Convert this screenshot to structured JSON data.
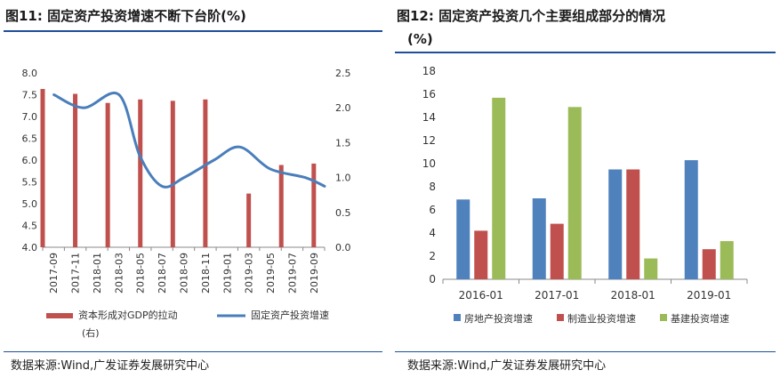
{
  "left": {
    "title_prefix": "图11:",
    "title_text": "固定资产投资增速不断下台阶(%)",
    "source": "数据来源:Wind,广发证券发展研究中心",
    "chart_data": {
      "type": "bar+line",
      "title": "固定资产投资增速不断下台阶(%)",
      "categories": [
        "2017-09",
        "2017-11",
        "2018-01",
        "2018-03",
        "2018-05",
        "2018-07",
        "2018-09",
        "2018-11",
        "2019-01",
        "2019-03",
        "2019-05",
        "2019-07",
        "2019-09"
      ],
      "left_axis": {
        "ylim": [
          4.0,
          8.0
        ],
        "ticks": [
          "4.0",
          "4.5",
          "5.0",
          "5.5",
          "6.0",
          "6.5",
          "7.0",
          "7.5",
          "8.0"
        ]
      },
      "right_axis": {
        "ylim": [
          0.0,
          2.5
        ],
        "ticks": [
          "0.0",
          "0.5",
          "1.0",
          "1.5",
          "2.0",
          "2.5"
        ]
      },
      "bar_categories": [
        "2017-08",
        "2017-11",
        "2018-02",
        "2018-05",
        "2018-08",
        "2018-11",
        "2019-03",
        "2019-06",
        "2019-09"
      ],
      "bar_series": {
        "name": "资本形成对GDP的拉动(右)",
        "axis": "right",
        "color": "#c0504d",
        "values": [
          2.27,
          2.2,
          2.07,
          2.12,
          2.1,
          2.12,
          0.77,
          1.18,
          1.2
        ]
      },
      "line_series": {
        "name": "固定资产投资增速",
        "axis": "left",
        "color": "#4a7ebb",
        "x": [
          2017.67,
          2017.9,
          2018.17,
          2018.33,
          2018.5,
          2018.67,
          2018.9,
          2019.1,
          2019.33,
          2019.6,
          2019.75
        ],
        "values": [
          7.5,
          7.2,
          7.5,
          6.1,
          5.4,
          5.6,
          6.0,
          6.3,
          5.8,
          5.6,
          5.4
        ]
      },
      "legend": [
        "资本形成对GDP的拉动",
        "(右)",
        "固定资产投资增速"
      ]
    }
  },
  "right": {
    "title_prefix": "图12:",
    "title_text": "固定资产投资几个主要组成部分的情况",
    "title_line2": "(%)",
    "source": "数据来源:Wind,广发证券发展研究中心",
    "chart_data": {
      "type": "bar",
      "title": "固定资产投资几个主要组成部分的情况(%)",
      "categories": [
        "2016-01",
        "2017-01",
        "2018-01",
        "2019-01"
      ],
      "ylim": [
        0,
        18
      ],
      "ticks": [
        "0",
        "2",
        "4",
        "6",
        "8",
        "10",
        "12",
        "14",
        "16",
        "18"
      ],
      "series": [
        {
          "name": "房地产投资增速",
          "color": "#4f81bd",
          "values": [
            6.9,
            7.0,
            9.5,
            10.3
          ]
        },
        {
          "name": "制造业投资增速",
          "color": "#c0504d",
          "values": [
            4.2,
            4.8,
            9.5,
            2.6
          ]
        },
        {
          "name": "基建投资增速",
          "color": "#9bbb59",
          "values": [
            15.7,
            14.9,
            1.8,
            3.3
          ]
        }
      ]
    }
  }
}
